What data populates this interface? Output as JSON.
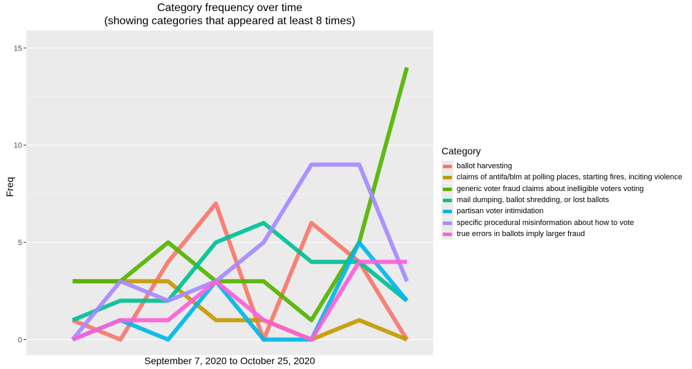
{
  "chart_data": {
    "type": "line",
    "title": "Category frequency over time",
    "subtitle": "(showing categories that appeared at least 8 times)",
    "xlabel": "September 7, 2020 to October 25, 2020",
    "ylabel": "Freq",
    "x": [
      1,
      2,
      3,
      4,
      5,
      6,
      7,
      8
    ],
    "ylim": [
      -0.8,
      15.9
    ],
    "y_ticks": [
      0,
      5,
      10,
      15
    ],
    "grid": true,
    "legend_title": "Category",
    "legend_position": "right",
    "series": [
      {
        "name": "ballot harvesting",
        "color": "#F8766D",
        "values": [
          1,
          0,
          4,
          7,
          0,
          6,
          4,
          0
        ]
      },
      {
        "name": "claims of antifa/blm at polling places, starting fires, inciting violence",
        "color": "#C49A00",
        "values": [
          3,
          3,
          3,
          1,
          1,
          0,
          1,
          0
        ]
      },
      {
        "name": "generic voter fraud claims about inelligible voters voting",
        "color": "#53B400",
        "values": [
          3,
          3,
          5,
          3,
          3,
          1,
          5,
          14
        ]
      },
      {
        "name": "mail dumping, ballot shredding, or lost ballots",
        "color": "#00C094",
        "values": [
          1,
          2,
          2,
          5,
          6,
          4,
          4,
          2
        ]
      },
      {
        "name": "partisan voter intimidation",
        "color": "#00B6EB",
        "values": [
          0,
          1,
          0,
          3,
          0,
          0,
          5,
          2
        ]
      },
      {
        "name": "specific procedural misinformation about how to vote",
        "color": "#A58AFF",
        "values": [
          0,
          3,
          2,
          3,
          5,
          9,
          9,
          3
        ]
      },
      {
        "name": "true errors in ballots imply larger fraud",
        "color": "#FB61D7",
        "values": [
          0,
          1,
          1,
          3,
          1,
          0,
          4,
          4
        ]
      }
    ]
  }
}
